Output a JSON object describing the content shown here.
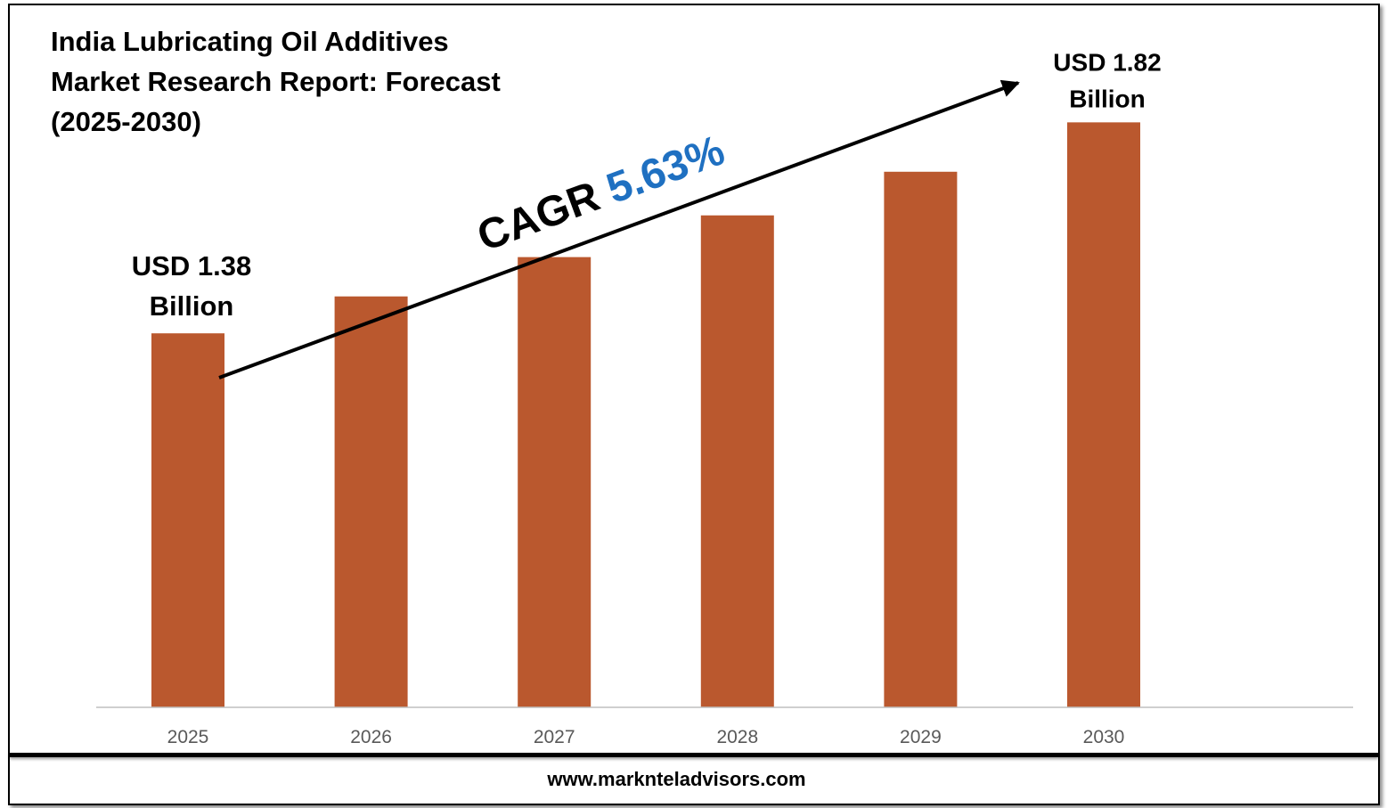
{
  "title": "India Lubricating Oil Additives Market Research Report: Forecast (2025-2030)",
  "website": "www.marknteladvisors.com",
  "colors": {
    "bar": "#BA582E",
    "cagr_value": "#1F70C1",
    "axis": "#BFBFBF",
    "tick_text": "#595959"
  },
  "chart_data": {
    "type": "bar",
    "title": "India Lubricating Oil Additives Market Research Report: Forecast (2025-2030)",
    "categories": [
      "2025",
      "2026",
      "2027",
      "2028",
      "2029",
      "2030"
    ],
    "values": [
      1.38,
      1.457,
      1.539,
      1.626,
      1.717,
      1.82
    ],
    "ylim": [
      0.6,
      1.96
    ],
    "xlabel": "",
    "ylabel": "",
    "unit": "USD Billion",
    "annotations": {
      "start_label": [
        "USD 1.38",
        "Billion"
      ],
      "end_label": [
        "USD 1.82",
        "Billion"
      ],
      "cagr_prefix": "CAGR",
      "cagr_value": "5.63%"
    }
  }
}
